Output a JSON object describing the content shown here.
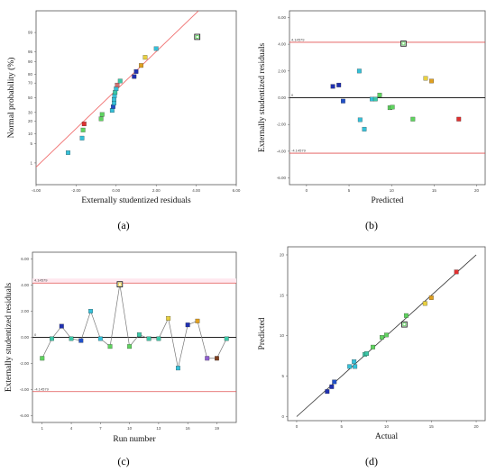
{
  "colors": {
    "limit_line": "#e05050",
    "fit_line": "#f07070",
    "zero_line": "#222222",
    "connector": "#777777",
    "highlight_band": "#ffe8ef"
  },
  "chart_data": [
    {
      "id": "a",
      "type": "scatter",
      "panel_label": "(a)",
      "xlabel": "Externally studentized residuals",
      "ylabel": "Normal probability (%)",
      "xlim": [
        -4,
        6
      ],
      "x_ticks": [
        "-4.00",
        "-2.00",
        "0.00",
        "2.00",
        "4.00",
        "6.00"
      ],
      "y_ticks": [
        "1",
        "5",
        "10",
        "20",
        "30",
        "50",
        "70",
        "80",
        "90",
        "95",
        "99"
      ],
      "y_tick_values": [
        1,
        5,
        10,
        20,
        30,
        50,
        70,
        80,
        90,
        95,
        99
      ],
      "fit_line": [
        [
          -4.4,
          0.3
        ],
        [
          4.1,
          99.9
        ]
      ],
      "points": [
        {
          "x": -2.4,
          "p": 2.5,
          "color": "#35c0d8"
        },
        {
          "x": -1.7,
          "p": 7.5,
          "color": "#35c0d8"
        },
        {
          "x": -1.65,
          "p": 12.5,
          "color": "#5fd35f"
        },
        {
          "x": -1.6,
          "p": 17.5,
          "color": "#e03030"
        },
        {
          "x": -0.75,
          "p": 22.5,
          "color": "#5fd35f"
        },
        {
          "x": -0.7,
          "p": 27.5,
          "color": "#5fd35f"
        },
        {
          "x": -0.2,
          "p": 32.5,
          "color": "#35c0d8"
        },
        {
          "x": -0.15,
          "p": 37.5,
          "color": "#2050c8"
        },
        {
          "x": -0.1,
          "p": 42.5,
          "color": "#35c0d8"
        },
        {
          "x": -0.1,
          "p": 47.5,
          "color": "#35c0d8"
        },
        {
          "x": -0.08,
          "p": 52.5,
          "color": "#35c0d8"
        },
        {
          "x": -0.05,
          "p": 57.5,
          "color": "#3cc8a8"
        },
        {
          "x": 0.0,
          "p": 62.5,
          "color": "#35c0d8"
        },
        {
          "x": 0.05,
          "p": 67.5,
          "color": "#d07070"
        },
        {
          "x": 0.2,
          "p": 72.5,
          "color": "#3cc8a8"
        },
        {
          "x": 0.9,
          "p": 77.5,
          "color": "#2030b0"
        },
        {
          "x": 1.0,
          "p": 82.5,
          "color": "#2030b0"
        },
        {
          "x": 1.25,
          "p": 87.5,
          "color": "#e0a020"
        },
        {
          "x": 1.45,
          "p": 92.5,
          "color": "#e8d040"
        },
        {
          "x": 2.0,
          "p": 96.0,
          "color": "#35c0d8"
        },
        {
          "x": 4.05,
          "p": 98.5,
          "color": "#5fd35f",
          "hollow": true
        }
      ]
    },
    {
      "id": "b",
      "type": "scatter",
      "panel_label": "(b)",
      "xlabel": "Predicted",
      "ylabel": "Externally studentized residuals",
      "xlim": [
        -2,
        21
      ],
      "ylim": [
        -6.5,
        6.5
      ],
      "x_ticks": [
        0,
        5,
        10,
        15,
        20
      ],
      "y_ticks": [
        "-6.00",
        "-4.00",
        "-2.00",
        "0.00",
        "2.00",
        "4.00",
        "6.00"
      ],
      "y_tick_values": [
        -6,
        -4,
        -2,
        0,
        2,
        4,
        6
      ],
      "limits": {
        "upper": 4.14579,
        "lower": -4.14579,
        "upper_label": "4.14579",
        "lower_label": "-4.14579",
        "zero_label": "0"
      },
      "points": [
        {
          "x": 3.1,
          "y": 0.85,
          "color": "#2030b0"
        },
        {
          "x": 3.8,
          "y": 0.95,
          "color": "#2030b0"
        },
        {
          "x": 4.3,
          "y": -0.25,
          "color": "#2050c8"
        },
        {
          "x": 6.2,
          "y": 2.0,
          "color": "#35c0d8"
        },
        {
          "x": 6.3,
          "y": -1.65,
          "color": "#35c0d8"
        },
        {
          "x": 6.8,
          "y": -2.35,
          "color": "#35c0d8"
        },
        {
          "x": 7.7,
          "y": -0.1,
          "color": "#35c0d8"
        },
        {
          "x": 8.1,
          "y": -0.1,
          "color": "#3cc8a8"
        },
        {
          "x": 8.6,
          "y": 0.2,
          "color": "#5fd35f"
        },
        {
          "x": 9.8,
          "y": -0.75,
          "color": "#5fd35f"
        },
        {
          "x": 10.1,
          "y": -0.7,
          "color": "#5fd35f"
        },
        {
          "x": 11.4,
          "y": 4.05,
          "color": "#5fd35f",
          "hollow": true
        },
        {
          "x": 12.5,
          "y": -1.6,
          "color": "#5fd35f"
        },
        {
          "x": 14.0,
          "y": 1.45,
          "color": "#e8d040"
        },
        {
          "x": 14.7,
          "y": 1.25,
          "color": "#e0a020"
        },
        {
          "x": 17.9,
          "y": -1.6,
          "color": "#e03030"
        }
      ]
    },
    {
      "id": "c",
      "type": "line",
      "panel_label": "(c)",
      "xlabel": "Run number",
      "ylabel": "Externally studentized residuals",
      "xlim": [
        0,
        21
      ],
      "ylim": [
        -6.5,
        6.5
      ],
      "x_ticks": [
        1,
        4,
        7,
        10,
        13,
        16,
        19
      ],
      "y_ticks": [
        "-6.00",
        "-4.00",
        "-2.00",
        "0.00",
        "2.00",
        "4.00",
        "6.00"
      ],
      "y_tick_values": [
        -6,
        -4,
        -2,
        0,
        2,
        4,
        6
      ],
      "limits": {
        "upper": 4.14579,
        "lower": -4.14579,
        "upper_label": "4.14579",
        "lower_label": "-4.14579",
        "zero_label": "0"
      },
      "points": [
        {
          "x": 1,
          "y": -1.6,
          "color": "#5fd35f"
        },
        {
          "x": 2,
          "y": -0.1,
          "color": "#3cc8a8"
        },
        {
          "x": 3,
          "y": 0.85,
          "color": "#2030b0"
        },
        {
          "x": 4,
          "y": -0.1,
          "color": "#3cc8a8"
        },
        {
          "x": 5,
          "y": -0.25,
          "color": "#2050c8"
        },
        {
          "x": 6,
          "y": 2.0,
          "color": "#35c0d8"
        },
        {
          "x": 7,
          "y": -0.1,
          "color": "#35c0d8"
        },
        {
          "x": 8,
          "y": -0.7,
          "color": "#5fd35f"
        },
        {
          "x": 9,
          "y": 4.05,
          "color": "#e8d040",
          "hollow": true
        },
        {
          "x": 10,
          "y": -0.7,
          "color": "#5fd35f"
        },
        {
          "x": 11,
          "y": 0.2,
          "color": "#3cc8a8"
        },
        {
          "x": 12,
          "y": -0.1,
          "color": "#3cc8a8"
        },
        {
          "x": 13,
          "y": -0.1,
          "color": "#3cc8a8"
        },
        {
          "x": 14,
          "y": 1.45,
          "color": "#e8d040"
        },
        {
          "x": 15,
          "y": -2.35,
          "color": "#35c0d8"
        },
        {
          "x": 16,
          "y": 0.95,
          "color": "#2030b0"
        },
        {
          "x": 17,
          "y": 1.25,
          "color": "#e0a020"
        },
        {
          "x": 18,
          "y": -1.6,
          "color": "#9060d0"
        },
        {
          "x": 19,
          "y": -1.6,
          "color": "#804020"
        },
        {
          "x": 20,
          "y": -0.1,
          "color": "#3cc8a8"
        }
      ]
    },
    {
      "id": "d",
      "type": "scatter",
      "panel_label": "(d)",
      "xlabel": "Actual",
      "ylabel": "Predicted",
      "xlim": [
        -1,
        21
      ],
      "ylim": [
        -0.5,
        21
      ],
      "x_ticks": [
        0,
        5,
        10,
        15,
        20
      ],
      "y_ticks": [
        0,
        5,
        10,
        15,
        20
      ],
      "fit_line": [
        [
          0,
          0
        ],
        [
          20,
          20
        ]
      ],
      "points": [
        {
          "x": 3.4,
          "y": 3.1,
          "color": "#2030b0"
        },
        {
          "x": 3.9,
          "y": 3.7,
          "color": "#2030b0"
        },
        {
          "x": 4.2,
          "y": 4.3,
          "color": "#2050c8"
        },
        {
          "x": 5.9,
          "y": 6.2,
          "color": "#35c0d8"
        },
        {
          "x": 6.4,
          "y": 6.8,
          "color": "#35c0d8"
        },
        {
          "x": 6.5,
          "y": 6.2,
          "color": "#35c0d8"
        },
        {
          "x": 7.6,
          "y": 7.7,
          "color": "#3cc8a8"
        },
        {
          "x": 7.8,
          "y": 7.8,
          "color": "#3cc8a8"
        },
        {
          "x": 8.5,
          "y": 8.6,
          "color": "#5fd35f"
        },
        {
          "x": 9.5,
          "y": 9.8,
          "color": "#5fd35f"
        },
        {
          "x": 10.0,
          "y": 10.1,
          "color": "#5fd35f"
        },
        {
          "x": 12.0,
          "y": 11.4,
          "color": "#5fd35f",
          "hollow": true
        },
        {
          "x": 12.2,
          "y": 12.5,
          "color": "#5fd35f"
        },
        {
          "x": 14.3,
          "y": 14.0,
          "color": "#e8d040"
        },
        {
          "x": 15.0,
          "y": 14.7,
          "color": "#e0a020"
        },
        {
          "x": 17.8,
          "y": 17.9,
          "color": "#e03030"
        }
      ]
    }
  ]
}
